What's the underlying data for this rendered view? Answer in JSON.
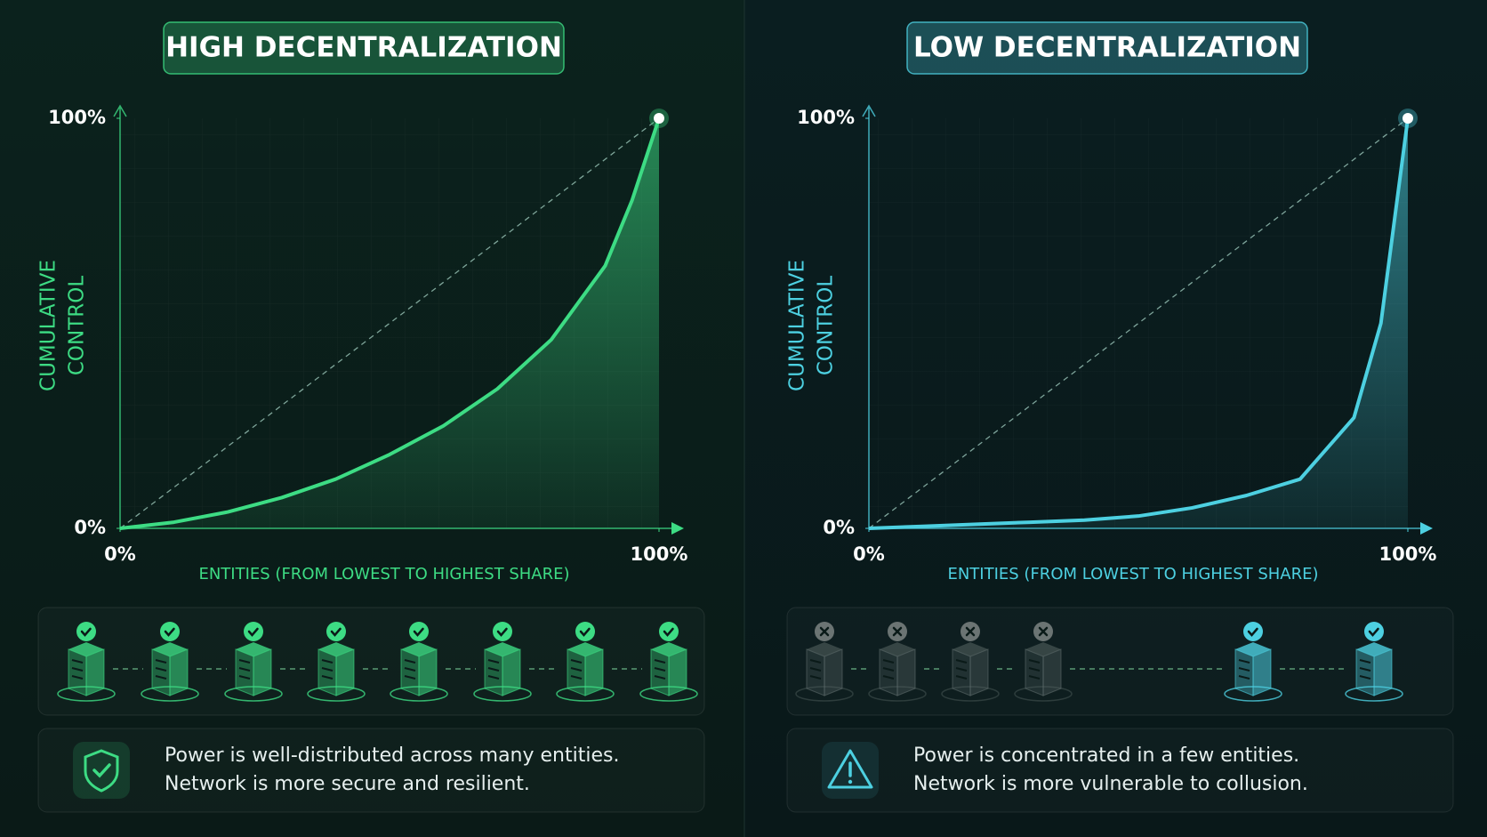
{
  "chart_data": [
    {
      "type": "line",
      "title": "HIGH DECENTRALIZATION",
      "ylabel": [
        "CUMULATIVE",
        "CONTROL"
      ],
      "xlabel": "ENTITIES (FROM LOWEST TO HIGHEST SHARE)",
      "x": [
        0,
        10,
        20,
        30,
        40,
        50,
        60,
        70,
        80,
        90,
        95,
        100
      ],
      "series": [
        {
          "color": "#3ddc84",
          "values": [
            0,
            1.5,
            4,
            7.5,
            12,
            18,
            25,
            34,
            46,
            64,
            80,
            100
          ]
        }
      ],
      "xlim": [
        0,
        100
      ],
      "ylim": [
        0,
        100
      ],
      "xticks": [
        {
          "value": 0,
          "label": "0%"
        },
        {
          "value": 100,
          "label": "100%"
        }
      ],
      "yticks": [
        {
          "value": 0,
          "label": "0%"
        },
        {
          "value": 100,
          "label": "100%"
        }
      ],
      "caption": [
        "Power is well-distributed across many entities.",
        "Network is more secure and resilient."
      ]
    },
    {
      "type": "line",
      "title": "LOW DECENTRALIZATION",
      "ylabel": [
        "CUMULATIVE",
        "CONTROL"
      ],
      "xlabel": "ENTITIES (FROM LOWEST TO HIGHEST SHARE)",
      "x": [
        0,
        10,
        20,
        30,
        40,
        50,
        60,
        70,
        80,
        90,
        95,
        100
      ],
      "series": [
        {
          "color": "#4dd0e1",
          "values": [
            0,
            0.5,
            1,
            1.5,
            2,
            3,
            5,
            8,
            12,
            27,
            50,
            100
          ]
        }
      ],
      "xlim": [
        0,
        100
      ],
      "ylim": [
        0,
        100
      ],
      "xticks": [
        {
          "value": 0,
          "label": "0%"
        },
        {
          "value": 100,
          "label": "100%"
        }
      ],
      "yticks": [
        {
          "value": 0,
          "label": "0%"
        },
        {
          "value": 100,
          "label": "100%"
        }
      ],
      "caption": [
        "Power is concentrated in a few entities.",
        "Network is more vulnerable to collusion."
      ]
    }
  ]
}
